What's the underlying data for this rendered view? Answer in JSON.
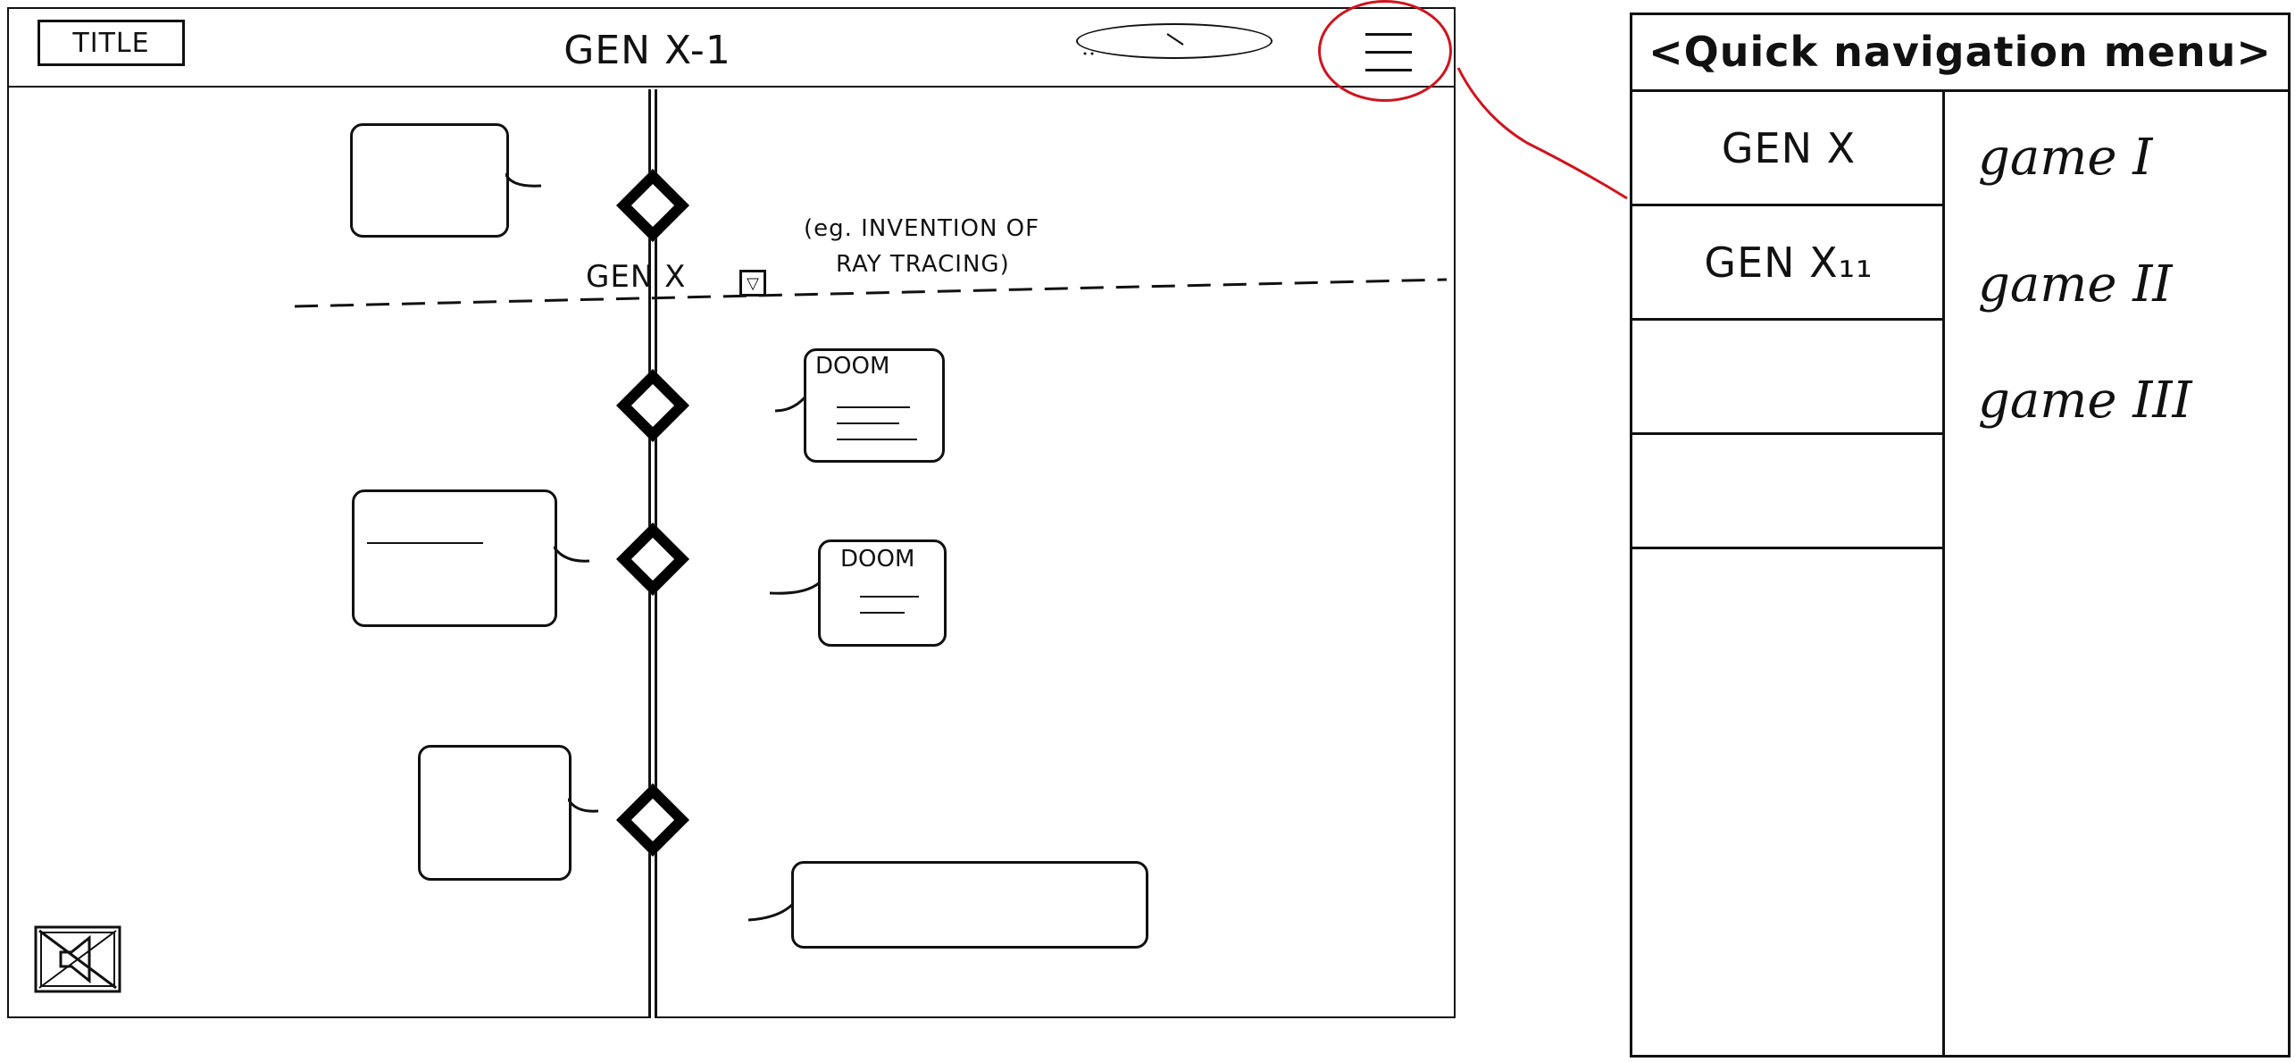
{
  "header": {
    "title_button": "TITLE",
    "page_title": "GEN X-1"
  },
  "timeline": {
    "era_label": "GEN X",
    "era_note_line1": "(eg. INVENTION OF",
    "era_note_line2": "RAY TRACING)",
    "event_cards": [
      {
        "title": "DOOM"
      },
      {
        "title": "DOOM"
      }
    ]
  },
  "quick_nav": {
    "title": "<Quick navigation menu>",
    "generations": [
      "GEN X",
      "GEN X₁₁"
    ],
    "games": [
      "game I",
      "game II",
      "game III"
    ]
  },
  "colors": {
    "ink": "#111111",
    "annotation_red": "#d0141c"
  },
  "icons": {
    "menu": "hamburger-menu-icon",
    "mute": "muted-speaker-icon",
    "event_marker": "diamond-icon"
  }
}
